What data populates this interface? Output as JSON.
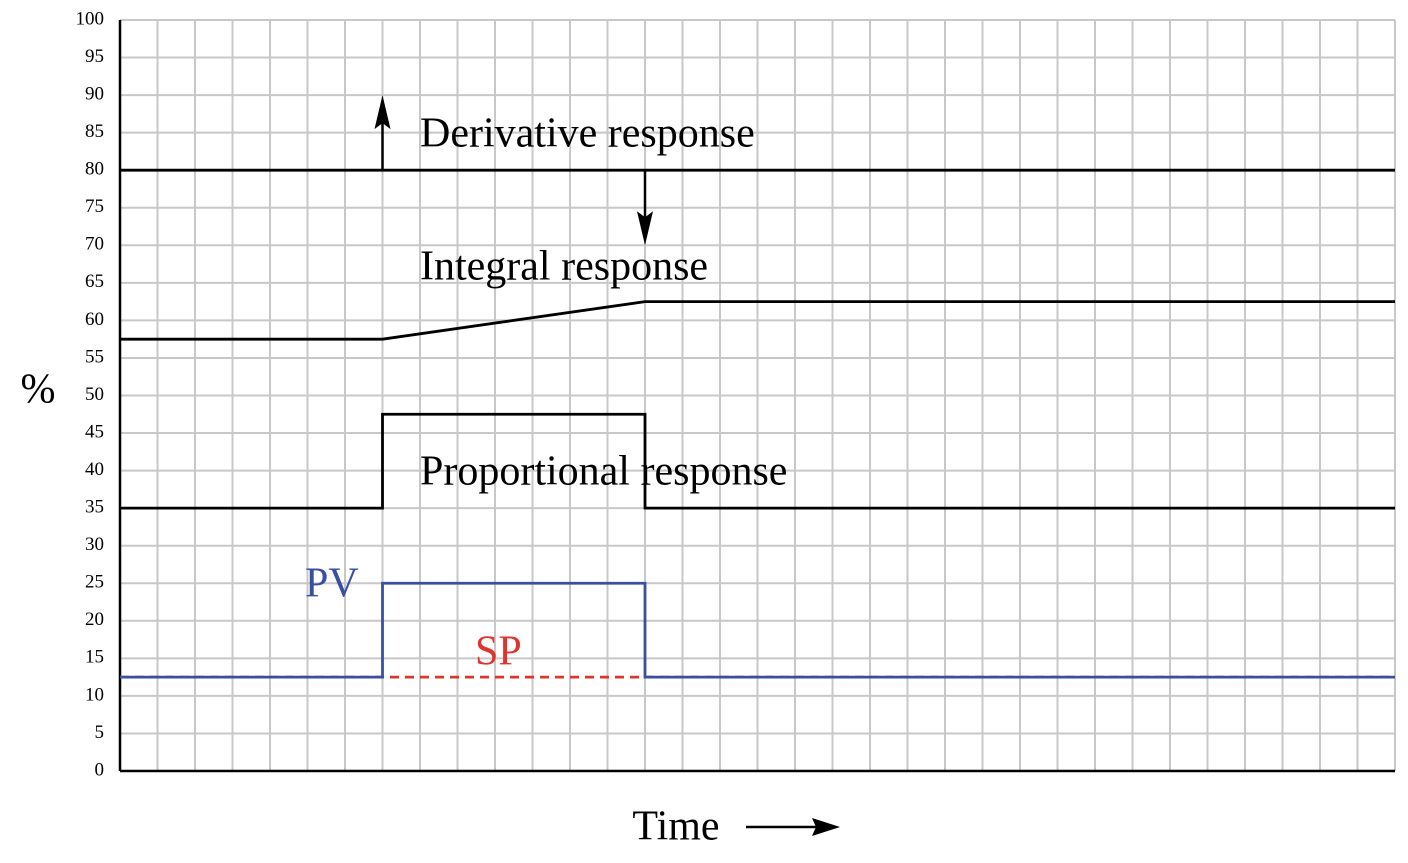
{
  "chart_data": {
    "type": "line",
    "y_label": "%",
    "x_label": "Time",
    "xlim": [
      0,
      34
    ],
    "xticks": [
      0,
      1,
      2,
      3,
      4,
      5,
      6,
      7,
      8,
      9,
      10,
      11,
      12,
      13,
      14,
      15,
      16,
      17,
      18,
      19,
      20,
      21,
      22,
      23,
      24,
      25,
      26,
      27,
      28,
      29,
      30,
      31,
      32,
      33,
      34
    ],
    "ylim": [
      0,
      100
    ],
    "yticks": [
      0,
      5,
      10,
      15,
      20,
      25,
      30,
      35,
      40,
      45,
      50,
      55,
      60,
      65,
      70,
      75,
      80,
      85,
      90,
      95,
      100
    ],
    "grid": true,
    "series": [
      {
        "name": "Derivative response",
        "color": "#000000",
        "x": [
          0,
          34
        ],
        "values": [
          80,
          80
        ],
        "impulses": [
          {
            "x": 7,
            "value": 90
          },
          {
            "x": 14,
            "value": 70
          }
        ]
      },
      {
        "name": "Integral response",
        "color": "#000000",
        "x": [
          0,
          7,
          14,
          34
        ],
        "values": [
          57.5,
          57.5,
          62.5,
          62.5
        ]
      },
      {
        "name": "Proportional response",
        "color": "#000000",
        "x": [
          0,
          7,
          7,
          14,
          14,
          34
        ],
        "values": [
          35,
          35,
          47.5,
          47.5,
          35,
          35
        ]
      },
      {
        "name": "SP",
        "color": "#e0332b",
        "dashed": true,
        "x": [
          0,
          34
        ],
        "values": [
          12.5,
          12.5
        ]
      },
      {
        "name": "PV",
        "color": "#3a4fa0",
        "x": [
          0,
          7,
          7,
          14,
          14,
          34
        ],
        "values": [
          12.5,
          12.5,
          25,
          25,
          12.5,
          12.5
        ]
      }
    ]
  }
}
